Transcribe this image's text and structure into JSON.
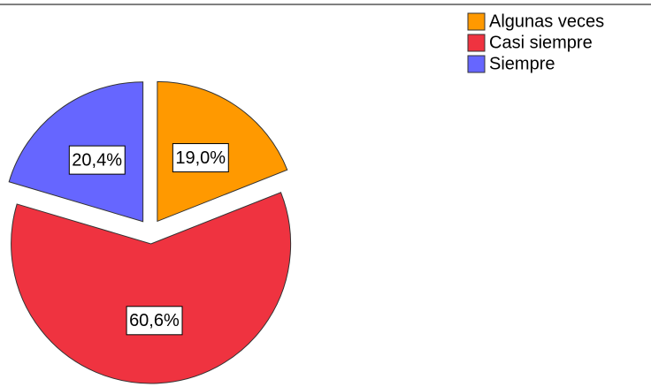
{
  "chart_data": {
    "type": "pie",
    "categories": [
      "Algunas veces",
      "Casi siempre",
      "Siempre"
    ],
    "values": [
      19.0,
      60.6,
      20.4
    ],
    "value_labels": [
      "19,0%",
      "60,6%",
      "20,4%"
    ],
    "colors": [
      "#ff9900",
      "#ef3340",
      "#6666ff"
    ],
    "legend": "top-right"
  }
}
